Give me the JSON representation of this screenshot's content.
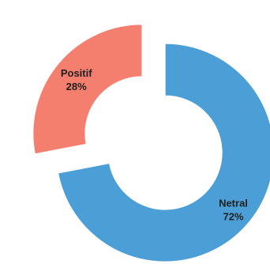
{
  "chart_data": {
    "type": "pie",
    "style": "exploded-donut",
    "categories": [
      "Positif",
      "Netral"
    ],
    "values": [
      28,
      72
    ],
    "value_labels": [
      "28%",
      "72%"
    ],
    "colors": [
      "#f57f6e",
      "#4b9fd6"
    ],
    "title": "",
    "legend": "none"
  }
}
